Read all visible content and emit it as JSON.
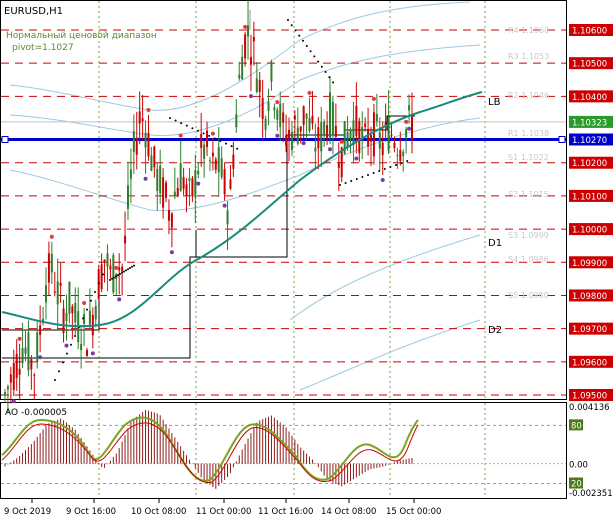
{
  "window": {
    "symbol_title": "EURUSD,H1",
    "indicator_name": "Нормальный ценовой диапазон",
    "pivot_label": "pivot=1.1027"
  },
  "current_price": "1.10323",
  "pivot_price": "1.10270",
  "price_axis": [
    "1.10600",
    "1.10500",
    "1.10400",
    "1.10200",
    "1.10100",
    "1.10000",
    "1.09900",
    "1.09800",
    "1.09700",
    "1.09600",
    "1.09500"
  ],
  "level_labels": [
    "R4 1.1060",
    "R3 1.1053",
    "R2 1.1046",
    "R1 1.1038",
    "S1 1.1022",
    "S2 1.1015",
    "S3 1.0999",
    "S4 1.0986",
    "S5 1.0980"
  ],
  "band_labels": {
    "lb": "LB",
    "d1": "D1",
    "d2": "D2"
  },
  "oscillator": {
    "title": "AO -0.000005",
    "axis_top": "0.004136",
    "axis_80": "80",
    "axis_zero": "0.00",
    "axis_20": "20",
    "axis_bottom": "-0.002351"
  },
  "time_axis": [
    "9 Oct 2019",
    "9 Oct 16:00",
    "10 Oct 08:00",
    "11 Oct 00:00",
    "11 Oct 16:00",
    "14 Oct 08:00",
    "15 Oct 00:00"
  ],
  "colors": {
    "bull": "#2f7d2f",
    "bear": "#cc0000",
    "ma": "#1a8a7a",
    "pivot": "#0000cc",
    "level": "#cc0000",
    "grid": "#7f9f3f",
    "band": "#9fc9df",
    "ao": "#8b1a1a",
    "stoch": "#7aa51e"
  },
  "chart_data": {
    "type": "candlestick",
    "symbol": "EURUSD",
    "timeframe": "H1",
    "ylim": [
      1.0945,
      1.1072
    ],
    "x": [
      "9 Oct 2019",
      "9 Oct 16:00",
      "10 Oct 08:00",
      "11 Oct 00:00",
      "11 Oct 16:00",
      "14 Oct 08:00",
      "15 Oct 00:00"
    ],
    "price_path": [
      1.095,
      1.0955,
      1.096,
      1.0965,
      1.0962,
      1.0958,
      1.097,
      1.0985,
      1.0988,
      1.098,
      1.0975,
      1.0978,
      1.0972,
      1.097,
      1.0968,
      1.0975,
      1.0985,
      1.0992,
      1.0985,
      1.099,
      1.0988,
      1.101,
      1.1025,
      1.1035,
      1.103,
      1.102,
      1.1015,
      1.101,
      1.1005,
      1.1012,
      1.1018,
      1.1008,
      1.1012,
      1.1022,
      1.1025,
      1.1018,
      1.102,
      1.1015,
      1.1005,
      1.103,
      1.105,
      1.106,
      1.1055,
      1.1045,
      1.1035,
      1.1045,
      1.104,
      1.103,
      1.1028,
      1.103,
      1.1032,
      1.1035,
      1.1028,
      1.1025,
      1.103,
      1.1035,
      1.103,
      1.1022,
      1.1028,
      1.1032,
      1.103,
      1.1025,
      1.103,
      1.1028,
      1.1025,
      1.103,
      1.1028,
      1.1026,
      1.103,
      1.1032
    ],
    "pivot": 1.1027,
    "levels": [
      1.106,
      1.105,
      1.104,
      1.102,
      1.101,
      1.1,
      1.099,
      1.098,
      1.097,
      1.096,
      1.095
    ],
    "ao_ylim": [
      -0.002351,
      0.004136
    ],
    "stoch_levels": [
      80,
      20
    ]
  }
}
